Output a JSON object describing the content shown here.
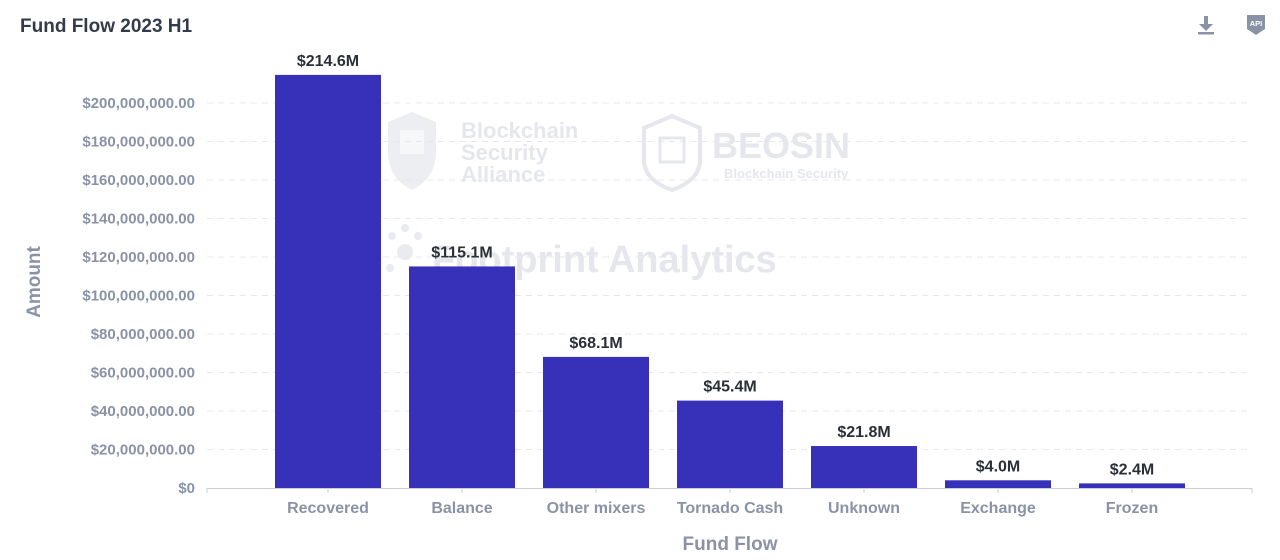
{
  "header": {
    "title": "Fund Flow 2023 H1",
    "download_icon": "download-icon",
    "api_icon": "api-icon",
    "api_label": "API"
  },
  "watermarks": {
    "alliance_line1": "Blockchain",
    "alliance_line2": "Security",
    "alliance_line3": "Alliance",
    "beosin": "BEOSIN",
    "beosin_sub": "Blockchain Security",
    "footprint": "Footprint Analytics"
  },
  "colors": {
    "bar": "#3730b8",
    "grid": "#e6e8ee",
    "axis": "#8a93a6"
  },
  "chart_data": {
    "type": "bar",
    "title": "Fund Flow 2023 H1",
    "xlabel": "Fund Flow",
    "ylabel": "Amount",
    "ylim": [
      0,
      220000000
    ],
    "grid": true,
    "categories": [
      "Recovered",
      "Balance",
      "Other mixers",
      "Tornado Cash",
      "Unknown",
      "Exchange",
      "Frozen"
    ],
    "values": [
      214600000,
      115100000,
      68100000,
      45400000,
      21800000,
      4000000,
      2400000
    ],
    "data_labels": [
      "$214.6M",
      "$115.1M",
      "$68.1M",
      "$45.4M",
      "$21.8M",
      "$4.0M",
      "$2.4M"
    ],
    "yticks": [
      0,
      20000000,
      40000000,
      60000000,
      80000000,
      100000000,
      120000000,
      140000000,
      160000000,
      180000000,
      200000000
    ],
    "ytick_labels": [
      "$0",
      "$20,000,000.00",
      "$40,000,000.00",
      "$60,000,000.00",
      "$80,000,000.00",
      "$100,000,000.00",
      "$120,000,000.00",
      "$140,000,000.00",
      "$160,000,000.00",
      "$180,000,000.00",
      "$200,000,000.00"
    ]
  }
}
